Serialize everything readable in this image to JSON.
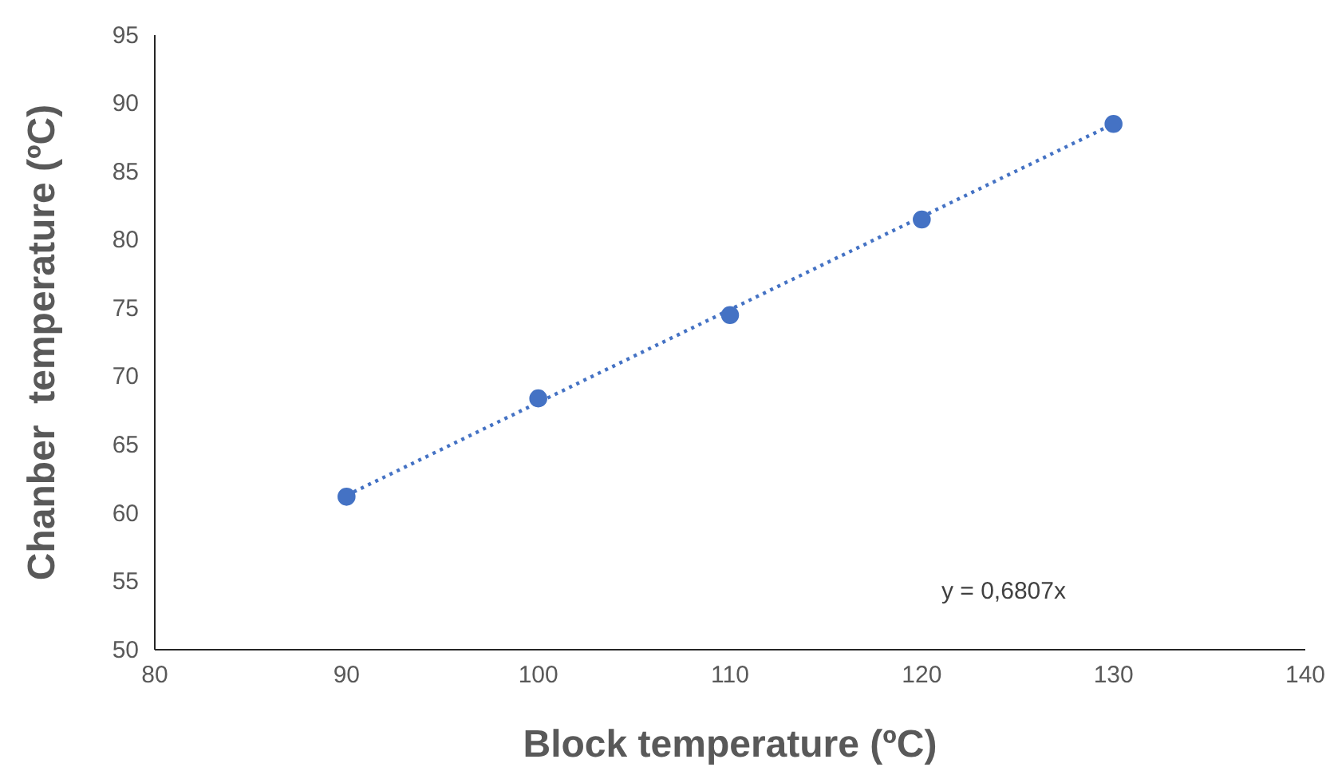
{
  "chart_data": {
    "type": "scatter",
    "xlabel": "Block temperature (ºC)",
    "ylabel": "Chanber  temperature (ºC)",
    "xlim": [
      80,
      140
    ],
    "xticks": [
      80,
      90,
      100,
      110,
      120,
      130,
      140
    ],
    "ylim": [
      50,
      95
    ],
    "yticks": [
      50,
      55,
      60,
      65,
      70,
      75,
      80,
      85,
      90,
      95
    ],
    "grid": false,
    "marker": "circle",
    "annotations": [
      "y = 0,6807x"
    ],
    "series": [
      {
        "color": "#4472c4",
        "x": [
          90,
          100,
          110,
          120,
          130
        ],
        "values": [
          61.2,
          68.4,
          74.5,
          81.5,
          88.5
        ]
      },
      {
        "type": "line",
        "color": "#4472c4",
        "line_style": "dotted",
        "marker": "none",
        "x": [
          90,
          130
        ],
        "values": [
          61.3,
          88.5
        ]
      }
    ]
  }
}
